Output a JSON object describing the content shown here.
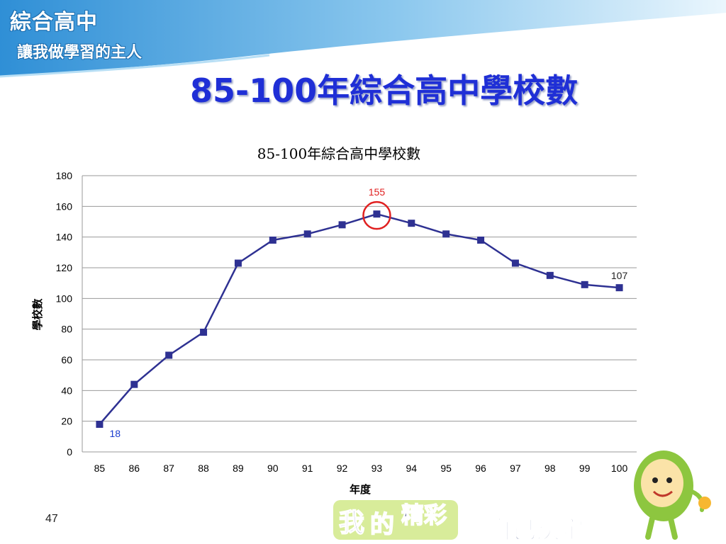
{
  "slide": {
    "brand_line1": "綜合高中",
    "brand_line2": "讓我做學習的主人",
    "title": "85-100年綜合高中學校數",
    "page_number": "47",
    "footer_words": [
      "我",
      "的",
      "精彩",
      "自己決定"
    ]
  },
  "colors": {
    "series": "#2e3192",
    "title_blue": "#1f2fd6",
    "highlight_red": "#e02020",
    "label_blue": "#1a3ccf",
    "banner_blue": "#3a9ad9"
  },
  "chart_data": {
    "type": "line",
    "title": "85-100年綜合高中學校數",
    "xlabel": "年度",
    "ylabel": "學校數",
    "categories": [
      "85",
      "86",
      "87",
      "88",
      "89",
      "90",
      "91",
      "92",
      "93",
      "94",
      "95",
      "96",
      "97",
      "98",
      "99",
      "100"
    ],
    "values": [
      18,
      44,
      63,
      78,
      123,
      138,
      142,
      148,
      155,
      149,
      142,
      138,
      123,
      115,
      109,
      107
    ],
    "ylim": [
      0,
      180
    ],
    "yticks": [
      0,
      20,
      40,
      60,
      80,
      100,
      120,
      140,
      160,
      180
    ],
    "grid": true,
    "marker": "square",
    "annotations": [
      {
        "index": 0,
        "text": "18",
        "color": "blue"
      },
      {
        "index": 8,
        "text": "155",
        "color": "red",
        "circled": true
      },
      {
        "index": 15,
        "text": "107",
        "color": "black"
      }
    ]
  }
}
